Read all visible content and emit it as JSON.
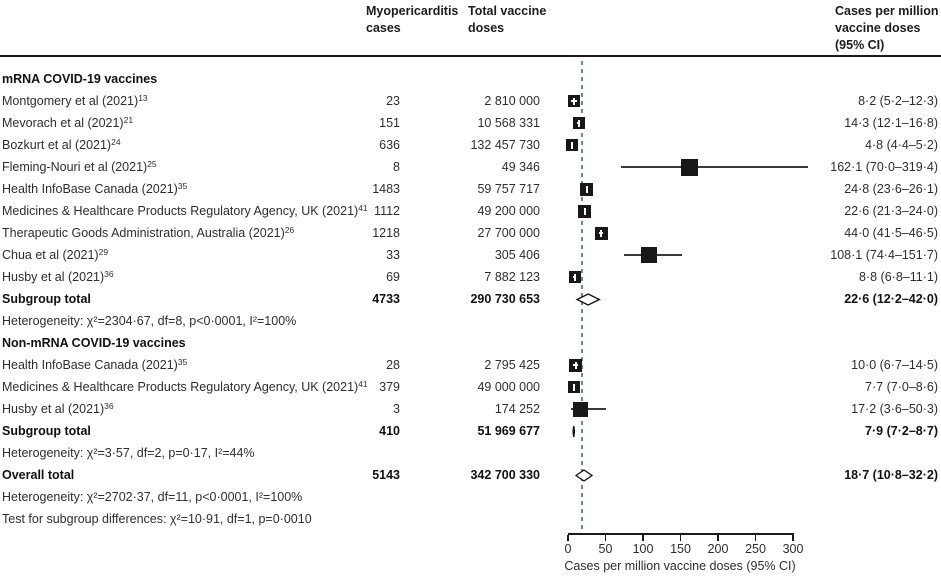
{
  "columns": {
    "cases": "Myopericarditis\ncases",
    "doses": "Total vaccine\ndoses",
    "rate": "Cases per million\nvaccine doses\n(95% CI)"
  },
  "chart_data": {
    "type": "forest",
    "xlabel": "Cases per million vaccine doses (95% CI)",
    "xticks": [
      0,
      50,
      100,
      150,
      200,
      250,
      300
    ],
    "xlim": [
      0,
      300
    ],
    "dashed_line_value": 18.7,
    "rows": [
      {
        "t": "group",
        "label": "mRNA COVID-19 vaccines"
      },
      {
        "t": "study",
        "label": "Montgomery et al (2021)",
        "ref": "13",
        "cases": "23",
        "doses": "2 810 000",
        "est": 8.2,
        "lo": 5.2,
        "hi": 12.3,
        "ci": "8·2 (5·2–12·3)",
        "sq": 12
      },
      {
        "t": "study",
        "label": "Mevorach et al (2021)",
        "ref": "21",
        "cases": "151",
        "doses": "10 568 331",
        "est": 14.3,
        "lo": 12.1,
        "hi": 16.8,
        "ci": "14·3 (12·1–16·8)",
        "sq": 12
      },
      {
        "t": "study",
        "label": "Bozkurt et al (2021)",
        "ref": "24",
        "cases": "636",
        "doses": "132 457 730",
        "est": 4.8,
        "lo": 4.4,
        "hi": 5.2,
        "ci": "4·8 (4·4–5·2)",
        "sq": 12
      },
      {
        "t": "study",
        "label": "Fleming-Nouri et al (2021)",
        "ref": "25",
        "cases": "8",
        "doses": "49 346",
        "est": 162.1,
        "lo": 70.0,
        "hi": 319.4,
        "ci": "162·1 (70·0–319·4)",
        "sq": 17
      },
      {
        "t": "study",
        "label": "Health InfoBase Canada (2021)",
        "ref": "35",
        "cases": "1483",
        "doses": "59 757 717",
        "est": 24.8,
        "lo": 23.6,
        "hi": 26.1,
        "ci": "24·8 (23·6–26·1)",
        "sq": 13
      },
      {
        "t": "study",
        "label": "Medicines & Healthcare Products Regulatory Agency, UK (2021)",
        "ref": "41",
        "cases": "1112",
        "doses": "49 200 000",
        "est": 22.6,
        "lo": 21.3,
        "hi": 24.0,
        "ci": "22·6 (21·3–24·0)",
        "sq": 13
      },
      {
        "t": "study",
        "label": "Therapeutic Goods Administration, Australia (2021)",
        "ref": "26",
        "cases": "1218",
        "doses": "27 700 000",
        "est": 44.0,
        "lo": 41.5,
        "hi": 46.5,
        "ci": "44·0 (41·5–46·5)",
        "sq": 13
      },
      {
        "t": "study",
        "label": "Chua et al (2021)",
        "ref": "29",
        "cases": "33",
        "doses": "305 406",
        "est": 108.1,
        "lo": 74.4,
        "hi": 151.7,
        "ci": "108·1 (74·4–151·7)",
        "sq": 16
      },
      {
        "t": "study",
        "label": "Husby et al (2021)",
        "ref": "36",
        "cases": "69",
        "doses": "7 882 123",
        "est": 8.8,
        "lo": 6.8,
        "hi": 11.1,
        "ci": "8·8 (6·8–11·1)",
        "sq": 12
      },
      {
        "t": "total",
        "label": "Subgroup total",
        "cases": "4733",
        "doses": "290 730 653",
        "est": 22.6,
        "lo": 12.2,
        "hi": 42.0,
        "ci": "22·6 (12·2–42·0)"
      },
      {
        "t": "note",
        "label": "Heterogeneity: χ²=2304·67, df=8, p<0·0001, I²=100%"
      },
      {
        "t": "group",
        "label": "Non-mRNA COVID-19 vaccines"
      },
      {
        "t": "study",
        "label": "Health InfoBase Canada (2021)",
        "ref": "35",
        "cases": "28",
        "doses": "2 795 425",
        "est": 10.0,
        "lo": 6.7,
        "hi": 14.5,
        "ci": "10·0 (6·7–14·5)",
        "sq": 13
      },
      {
        "t": "study",
        "label": "Medicines & Healthcare Products Regulatory Agency, UK (2021)",
        "ref": "41",
        "cases": "379",
        "doses": "49 000 000",
        "est": 7.7,
        "lo": 7.0,
        "hi": 8.6,
        "ci": "7·7 (7·0–8·6)",
        "sq": 12
      },
      {
        "t": "study",
        "label": "Husby et al (2021)",
        "ref": "36",
        "cases": "3",
        "doses": "174 252",
        "est": 17.2,
        "lo": 3.6,
        "hi": 50.3,
        "ci": "17·2 (3·6–50·3)",
        "sq": 15
      },
      {
        "t": "total",
        "label": "Subgroup total",
        "cases": "410",
        "doses": "51 969 677",
        "est": 7.9,
        "lo": 7.2,
        "hi": 8.7,
        "ci": "7·9 (7·2–8·7)"
      },
      {
        "t": "note",
        "label": "Heterogeneity: χ²=3·57, df=2, p=0·17, I²=44%"
      },
      {
        "t": "total",
        "label": "Overall total",
        "cases": "5143",
        "doses": "342 700 330",
        "est": 18.7,
        "lo": 10.8,
        "hi": 32.2,
        "ci": "18·7 (10·8–32·2)"
      },
      {
        "t": "note",
        "label": "Heterogeneity: χ²=2702·37, df=11, p<0·0001, I²=100%"
      },
      {
        "t": "note",
        "label": "Test for subgroup differences: χ²=10·91, df=1, p=0·0010"
      }
    ],
    "colors": {
      "marker": "#181818",
      "dashed_line": "#5d8d99",
      "text": "#2e2e2e"
    }
  }
}
